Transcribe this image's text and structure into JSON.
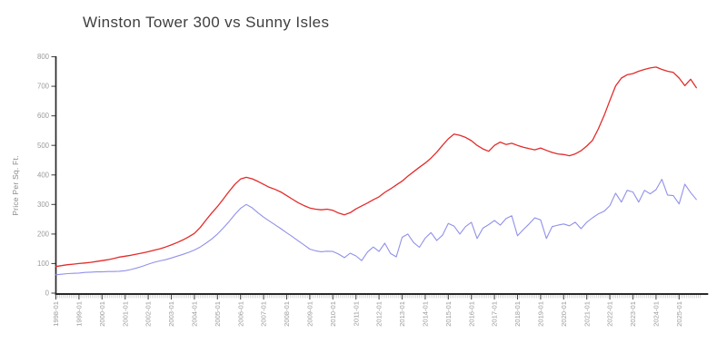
{
  "chart": {
    "title": "Winston Tower 300 vs Sunny Isles",
    "ylabel": "Price Per Sq. Ft."
  },
  "chart_data": {
    "type": "line",
    "title": "Winston Tower 300 vs Sunny Isles",
    "xlabel": "",
    "ylabel": "Price Per Sq. Ft.",
    "x_start": "1998-01",
    "x_interval_months": 3,
    "x_tick_labels": [
      "1998-01",
      "1999-01",
      "2000-01",
      "2001-01",
      "2002-01",
      "2003-01",
      "2004-01",
      "2005-01",
      "2006-01",
      "2007-01",
      "2008-01",
      "2009-01",
      "2010-01",
      "2011-01",
      "2012-01",
      "2013-01",
      "2014-01",
      "2015-01",
      "2016-01",
      "2017-01",
      "2018-01",
      "2019-01",
      "2020-01",
      "2021-01",
      "2022-01",
      "2023-01",
      "2024-01",
      "2025-01"
    ],
    "y_ticks": [
      0,
      100,
      200,
      300,
      400,
      500,
      600,
      700,
      800
    ],
    "ylim": [
      0,
      800
    ],
    "grid": false,
    "legend": "none",
    "minor_ticks": "monthly",
    "colors": {
      "winston": "#e32b2b",
      "sunny": "#9191e9",
      "spine": "#2a2a2a",
      "major_tick": "#4a4a4a",
      "minor_tick": "#c5c5c5",
      "tick_label": "#9b9b9b",
      "axis_label": "#8a8a8a"
    },
    "series": [
      {
        "name": "Winston Tower 300",
        "color": "#e32b2b",
        "values": [
          90,
          93,
          96,
          98,
          100,
          102,
          104,
          107,
          110,
          113,
          117,
          122,
          125,
          128,
          132,
          136,
          140,
          145,
          150,
          156,
          163,
          171,
          180,
          190,
          202,
          222,
          247,
          271,
          293,
          318,
          344,
          368,
          386,
          392,
          387,
          378,
          368,
          358,
          351,
          342,
          330,
          318,
          306,
          296,
          288,
          284,
          282,
          284,
          280,
          271,
          265,
          272,
          285,
          295,
          305,
          316,
          326,
          341,
          353,
          366,
          379,
          396,
          411,
          426,
          440,
          457,
          477,
          500,
          522,
          538,
          534,
          527,
          516,
          500,
          488,
          480,
          500,
          511,
          503,
          507,
          500,
          494,
          489,
          485,
          491,
          483,
          476,
          471,
          469,
          465,
          471,
          482,
          498,
          517,
          556,
          601,
          652,
          701,
          728,
          739,
          743,
          751,
          757,
          762,
          765,
          757,
          751,
          747,
          728,
          702,
          724,
          695
        ]
      },
      {
        "name": "Sunny Isles",
        "color": "#9191e9",
        "values": [
          62,
          64,
          66,
          67,
          68,
          70,
          71,
          72,
          72,
          73,
          73,
          74,
          76,
          80,
          85,
          91,
          98,
          104,
          109,
          113,
          119,
          125,
          131,
          138,
          146,
          156,
          169,
          183,
          200,
          220,
          242,
          266,
          287,
          300,
          289,
          272,
          257,
          244,
          231,
          218,
          204,
          191,
          177,
          163,
          149,
          143,
          140,
          142,
          141,
          132,
          120,
          135,
          126,
          110,
          139,
          156,
          141,
          169,
          134,
          123,
          189,
          200,
          171,
          155,
          186,
          205,
          178,
          196,
          236,
          227,
          200,
          225,
          240,
          185,
          220,
          232,
          246,
          230,
          252,
          262,
          194,
          215,
          234,
          255,
          248,
          185,
          225,
          230,
          234,
          228,
          240,
          218,
          240,
          255,
          268,
          277,
          296,
          338,
          308,
          348,
          342,
          308,
          348,
          336,
          350,
          385,
          332,
          330,
          302,
          369,
          340,
          317
        ]
      }
    ]
  }
}
